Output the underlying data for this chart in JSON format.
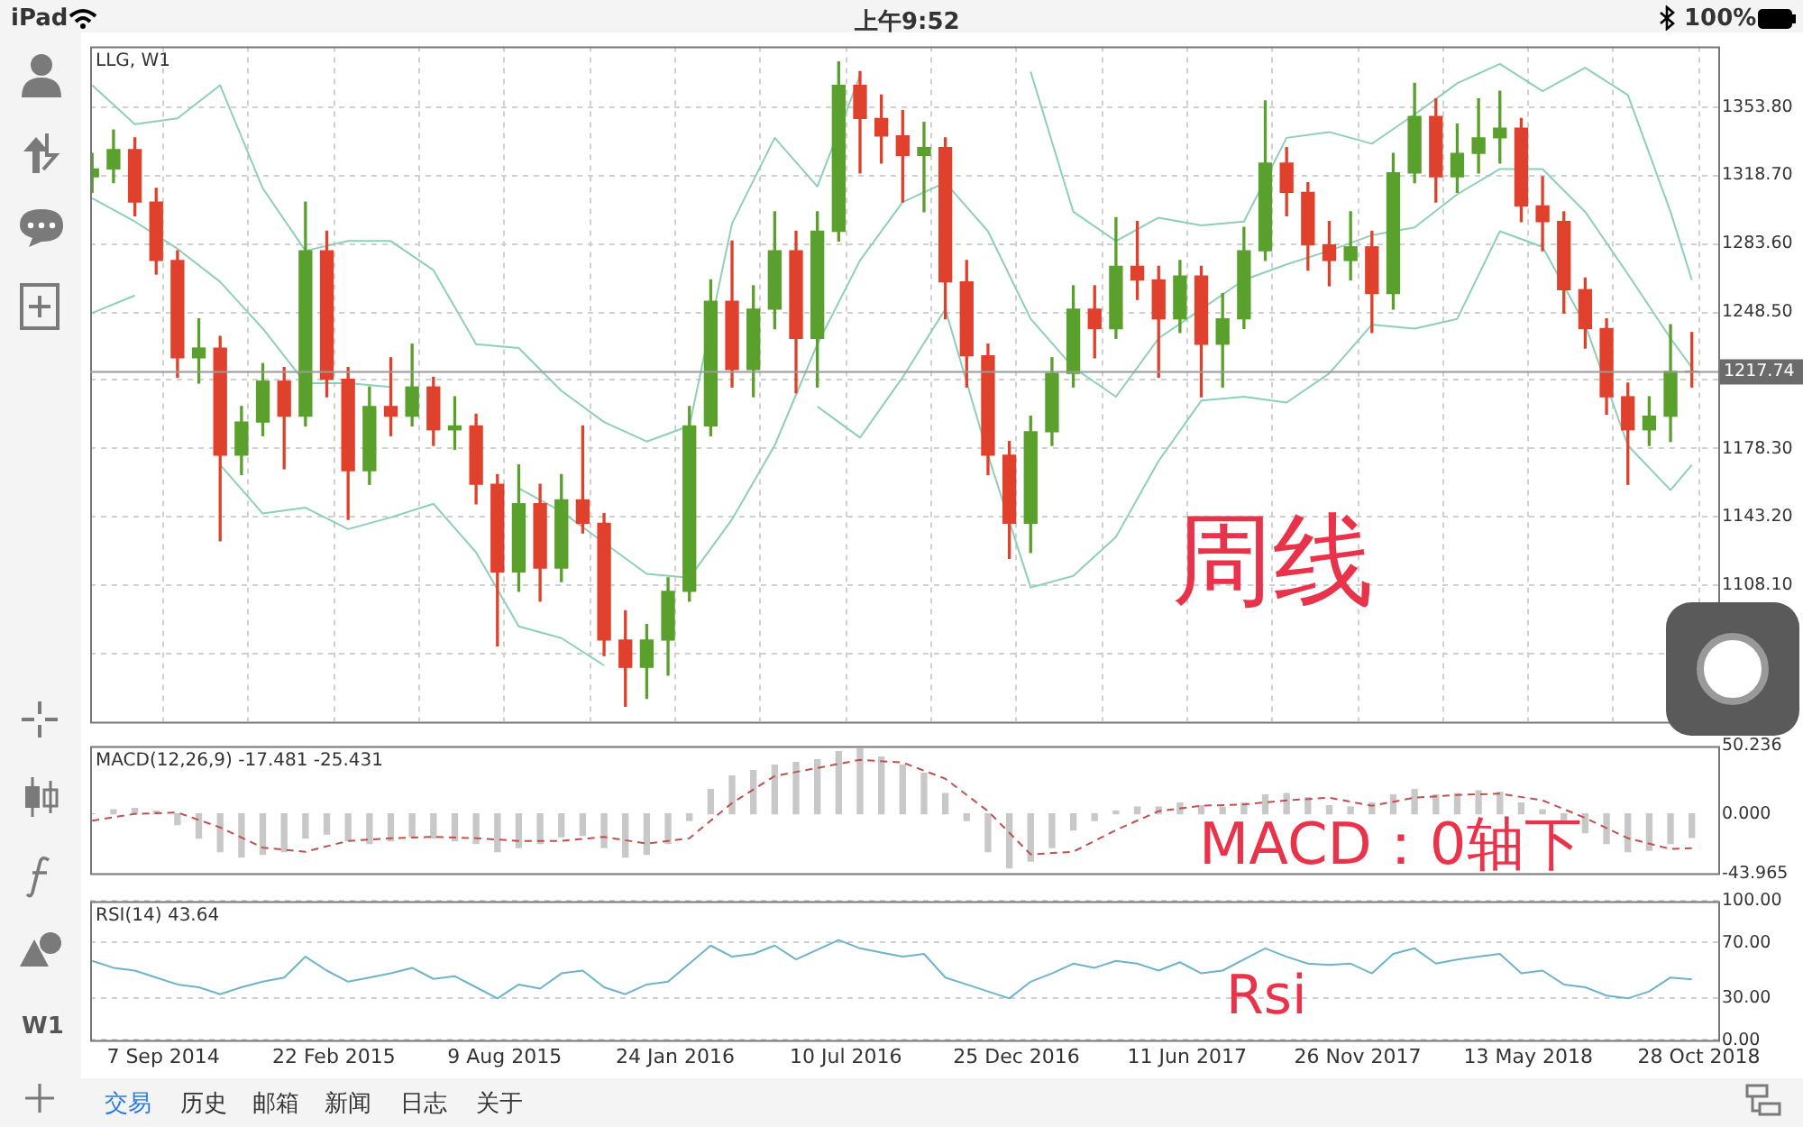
{
  "chart_data": [
    {
      "type": "candlestick",
      "title": "LLG, W1",
      "x": [
        "2014-06-29",
        "2014-07-20",
        "2014-08-10",
        "2014-08-31",
        "2014-09-21",
        "2014-10-12",
        "2014-11-02",
        "2014-11-23",
        "2014-12-14",
        "2015-01-04",
        "2015-01-25",
        "2015-02-15",
        "2015-03-08",
        "2015-03-29",
        "2015-04-19",
        "2015-05-10",
        "2015-05-31",
        "2015-06-21",
        "2015-07-12",
        "2015-08-02",
        "2015-08-23",
        "2015-09-13",
        "2015-10-04",
        "2015-10-25",
        "2015-11-15",
        "2015-12-06",
        "2015-12-27",
        "2016-01-17",
        "2016-02-07",
        "2016-02-28",
        "2016-03-20",
        "2016-04-10",
        "2016-05-01",
        "2016-05-22",
        "2016-06-12",
        "2016-07-03",
        "2016-07-24",
        "2016-08-14",
        "2016-09-04",
        "2016-09-25",
        "2016-10-16",
        "2016-11-06",
        "2016-11-27",
        "2016-12-18",
        "2017-01-08",
        "2017-01-29",
        "2017-02-19",
        "2017-03-12",
        "2017-04-02",
        "2017-04-23",
        "2017-05-14",
        "2017-06-04",
        "2017-06-25",
        "2017-07-16",
        "2017-08-06",
        "2017-08-27",
        "2017-09-17",
        "2017-10-08",
        "2017-10-29",
        "2017-11-19",
        "2017-12-10",
        "2017-12-31",
        "2018-01-21",
        "2018-02-11",
        "2018-03-04",
        "2018-03-25",
        "2018-04-15",
        "2018-05-06",
        "2018-05-27",
        "2018-06-17",
        "2018-07-08",
        "2018-07-29",
        "2018-08-19",
        "2018-09-09",
        "2018-09-30",
        "2018-10-21"
      ],
      "ohlc": [
        [
          1318,
          1330,
          1310,
          1322
        ],
        [
          1322,
          1342,
          1315,
          1332
        ],
        [
          1332,
          1338,
          1298,
          1305
        ],
        [
          1305,
          1312,
          1268,
          1275
        ],
        [
          1275,
          1280,
          1215,
          1225
        ],
        [
          1225,
          1245,
          1212,
          1230
        ],
        [
          1230,
          1236,
          1131,
          1175
        ],
        [
          1175,
          1200,
          1165,
          1192
        ],
        [
          1192,
          1222,
          1185,
          1213
        ],
        [
          1213,
          1220,
          1168,
          1195
        ],
        [
          1195,
          1305,
          1190,
          1280
        ],
        [
          1280,
          1290,
          1205,
          1214
        ],
        [
          1214,
          1220,
          1142,
          1167
        ],
        [
          1167,
          1210,
          1160,
          1200
        ],
        [
          1200,
          1225,
          1185,
          1195
        ],
        [
          1195,
          1232,
          1190,
          1210
        ],
        [
          1210,
          1215,
          1180,
          1188
        ],
        [
          1188,
          1205,
          1178,
          1190
        ],
        [
          1190,
          1196,
          1150,
          1160
        ],
        [
          1160,
          1165,
          1077,
          1115
        ],
        [
          1115,
          1170,
          1105,
          1150
        ],
        [
          1150,
          1160,
          1100,
          1117
        ],
        [
          1117,
          1165,
          1110,
          1152
        ],
        [
          1152,
          1190,
          1135,
          1140
        ],
        [
          1140,
          1145,
          1072,
          1080
        ],
        [
          1080,
          1095,
          1046,
          1066
        ],
        [
          1066,
          1088,
          1050,
          1080
        ],
        [
          1080,
          1112,
          1062,
          1105
        ],
        [
          1105,
          1200,
          1100,
          1190
        ],
        [
          1190,
          1265,
          1185,
          1254
        ],
        [
          1254,
          1285,
          1210,
          1219
        ],
        [
          1219,
          1262,
          1205,
          1250
        ],
        [
          1250,
          1300,
          1240,
          1280
        ],
        [
          1280,
          1290,
          1207,
          1235
        ],
        [
          1235,
          1300,
          1210,
          1290
        ],
        [
          1290,
          1377,
          1285,
          1365
        ],
        [
          1365,
          1372,
          1320,
          1348
        ],
        [
          1348,
          1360,
          1325,
          1339
        ],
        [
          1339,
          1352,
          1305,
          1329
        ],
        [
          1329,
          1346,
          1300,
          1333
        ],
        [
          1333,
          1338,
          1245,
          1264
        ],
        [
          1264,
          1275,
          1210,
          1226
        ],
        [
          1226,
          1232,
          1165,
          1175
        ],
        [
          1175,
          1182,
          1122,
          1140
        ],
        [
          1140,
          1195,
          1125,
          1187
        ],
        [
          1187,
          1225,
          1180,
          1217
        ],
        [
          1217,
          1262,
          1210,
          1250
        ],
        [
          1250,
          1262,
          1225,
          1240
        ],
        [
          1240,
          1297,
          1235,
          1272
        ],
        [
          1272,
          1295,
          1255,
          1265
        ],
        [
          1265,
          1272,
          1215,
          1245
        ],
        [
          1245,
          1275,
          1238,
          1267
        ],
        [
          1267,
          1272,
          1205,
          1232
        ],
        [
          1232,
          1258,
          1210,
          1245
        ],
        [
          1245,
          1292,
          1240,
          1280
        ],
        [
          1280,
          1357,
          1275,
          1325
        ],
        [
          1325,
          1333,
          1298,
          1310
        ],
        [
          1310,
          1315,
          1270,
          1283
        ],
        [
          1283,
          1295,
          1262,
          1275
        ],
        [
          1275,
          1300,
          1265,
          1282
        ],
        [
          1282,
          1290,
          1238,
          1258
        ],
        [
          1258,
          1330,
          1250,
          1320
        ],
        [
          1320,
          1366,
          1315,
          1349
        ],
        [
          1349,
          1358,
          1305,
          1318
        ],
        [
          1318,
          1345,
          1310,
          1330
        ],
        [
          1330,
          1358,
          1320,
          1338
        ],
        [
          1338,
          1362,
          1325,
          1343
        ],
        [
          1343,
          1348,
          1295,
          1303
        ],
        [
          1303,
          1318,
          1280,
          1295
        ],
        [
          1295,
          1300,
          1248,
          1260
        ],
        [
          1260,
          1266,
          1230,
          1240
        ],
        [
          1240,
          1245,
          1196,
          1205
        ],
        [
          1205,
          1212,
          1160,
          1188
        ],
        [
          1188,
          1205,
          1180,
          1195
        ],
        [
          1195,
          1242,
          1182,
          1218
        ],
        [
          1218,
          1238,
          1210,
          1217.74
        ]
      ],
      "colors": [
        "#5aa02c",
        "#5aa02c",
        "#e0412c",
        "#e0412c",
        "#e0412c",
        "#5aa02c",
        "#e0412c",
        "#5aa02c",
        "#5aa02c",
        "#e0412c",
        "#5aa02c",
        "#e0412c",
        "#e0412c",
        "#5aa02c",
        "#e0412c",
        "#5aa02c",
        "#e0412c",
        "#5aa02c",
        "#e0412c",
        "#e0412c",
        "#5aa02c",
        "#e0412c",
        "#5aa02c",
        "#e0412c",
        "#e0412c",
        "#e0412c",
        "#5aa02c",
        "#5aa02c",
        "#5aa02c",
        "#5aa02c",
        "#e0412c",
        "#5aa02c",
        "#5aa02c",
        "#e0412c",
        "#5aa02c",
        "#5aa02c",
        "#e0412c",
        "#e0412c",
        "#e0412c",
        "#5aa02c",
        "#e0412c",
        "#e0412c",
        "#e0412c",
        "#e0412c",
        "#5aa02c",
        "#5aa02c",
        "#5aa02c",
        "#e0412c",
        "#5aa02c",
        "#e0412c",
        "#e0412c",
        "#5aa02c",
        "#e0412c",
        "#5aa02c",
        "#5aa02c",
        "#5aa02c",
        "#e0412c",
        "#e0412c",
        "#e0412c",
        "#5aa02c",
        "#e0412c",
        "#5aa02c",
        "#5aa02c",
        "#e0412c",
        "#5aa02c",
        "#5aa02c",
        "#5aa02c",
        "#e0412c",
        "#e0412c",
        "#e0412c",
        "#e0412c",
        "#e0412c",
        "#e0412c",
        "#5aa02c",
        "#5aa02c",
        "#e0412c"
      ],
      "series": [
        {
          "type": "line",
          "color": "#8ecfb8",
          "x": [
            "2014-06-29",
            "2014-08-10",
            "2014-09-21",
            "2014-11-02",
            "2014-12-14",
            "2015-01-25",
            "2015-03-08",
            "2015-04-19",
            "2015-05-31",
            "2015-07-12",
            "2015-08-23",
            "2015-10-04",
            "2015-11-15",
            "2015-12-27",
            "2016-02-07",
            "2016-03-20",
            "2016-05-01",
            "2016-06-12",
            "2016-07-24",
            "2016-09-04",
            "2016-10-16",
            "2016-11-27",
            "2017-01-08",
            "2017-02-19",
            "2017-04-02",
            "2017-05-14",
            "2017-06-25",
            "2017-08-06",
            "2017-09-17",
            "2017-10-29",
            "2017-12-10",
            "2018-01-21",
            "2018-03-04",
            "2018-04-15",
            "2018-05-27",
            "2018-07-08",
            "2018-08-19",
            "2018-09-30",
            "2018-10-21"
          ],
          "values": [
            1365,
            1345,
            1348,
            1365,
            1312,
            1280,
            1285,
            1285,
            1270,
            1232,
            1230,
            1208,
            1192,
            1182,
            1190,
            1294,
            1338,
            1313,
            1370,
            null,
            null,
            null,
            1372,
            1300,
            1285,
            1297,
            1293,
            1295,
            1338,
            1341,
            1335,
            1350,
            1366,
            1376,
            1362,
            1374,
            1360,
            1300,
            1265
          ]
        },
        {
          "type": "line",
          "color": "#8ecfb8",
          "x": [
            "2014-06-29",
            "2014-08-10",
            "2014-09-21",
            "2014-11-02",
            "2014-12-14",
            "2015-01-25",
            "2015-03-08",
            "2015-04-19",
            "2015-05-31",
            "2015-07-12",
            "2015-08-23",
            "2015-10-04",
            "2015-11-15",
            "2015-12-27",
            "2016-02-07",
            "2016-03-20",
            "2016-05-01",
            "2016-06-12",
            "2016-07-24",
            "2016-09-04",
            "2016-10-16",
            "2016-11-27",
            "2017-01-08",
            "2017-02-19",
            "2017-04-02",
            "2017-05-14",
            "2017-06-25",
            "2017-08-06",
            "2017-09-17",
            "2017-10-29",
            "2017-12-10",
            "2018-01-21",
            "2018-03-04",
            "2018-04-15",
            "2018-05-27",
            "2018-07-08",
            "2018-08-19",
            "2018-09-30",
            "2018-10-21"
          ],
          "values": [
            1307,
            1295,
            1281,
            1264,
            1240,
            1212,
            1212,
            1210,
            null,
            null,
            1158,
            1146,
            1130,
            1114,
            1112,
            1142,
            1180,
            1232,
            1275,
            1305,
            1315,
            1290,
            1245,
            1220,
            1205,
            1235,
            1250,
            1265,
            1273,
            1280,
            1288,
            1292,
            1309,
            1322,
            1322,
            1300,
            1268,
            1235,
            1220
          ]
        },
        {
          "type": "line",
          "color": "#8ecfb8",
          "x": [
            "2014-06-29",
            "2014-08-10",
            "2014-09-21",
            "2014-11-02",
            "2014-12-14",
            "2015-01-25",
            "2015-03-08",
            "2015-04-19",
            "2015-05-31",
            "2015-07-12",
            "2015-08-23",
            "2015-10-04",
            "2015-11-15",
            "2015-12-27",
            "2016-02-07",
            "2016-03-20",
            "2016-05-01",
            "2016-06-12",
            "2016-07-24",
            "2016-09-04",
            "2016-10-16",
            "2016-11-27",
            "2017-01-08",
            "2017-02-19",
            "2017-04-02",
            "2017-05-14",
            "2017-06-25",
            "2017-08-06",
            "2017-09-17",
            "2017-10-29",
            "2017-12-10",
            "2018-01-21",
            "2018-03-04",
            "2018-04-15",
            "2018-05-27",
            "2018-07-08",
            "2018-08-19",
            "2018-09-30",
            "2018-10-21"
          ],
          "values": [
            1248,
            1257,
            null,
            1170,
            1145,
            1148,
            1137,
            1143,
            1150,
            1125,
            1087,
            1081,
            1067,
            null,
            null,
            null,
            null,
            1200,
            1184,
            1215,
            1250,
            1175,
            1107,
            1113,
            1133,
            1172,
            1203,
            1205,
            1202,
            1217,
            1242,
            1240,
            1245,
            1290,
            1282,
            1242,
            1180,
            1157,
            1170
          ]
        }
      ],
      "xlim": [
        "2014-06-27",
        "2018-11-16"
      ],
      "xticks": [
        {
          "value": "2014-09-07",
          "label": null
        },
        {
          "value": "2014-11-30",
          "label": null
        },
        {
          "value": "2015-02-22",
          "label": null
        },
        {
          "value": "2015-05-17",
          "label": null
        },
        {
          "value": "2015-08-09",
          "label": null
        },
        {
          "value": "2015-11-01",
          "label": null
        },
        {
          "value": "2016-01-24",
          "label": null
        },
        {
          "value": "2016-04-17",
          "label": null
        },
        {
          "value": "2016-07-10",
          "label": null
        },
        {
          "value": "2016-10-02",
          "label": null
        },
        {
          "value": "2016-12-25",
          "label": null
        },
        {
          "value": "2017-03-19",
          "label": null
        },
        {
          "value": "2017-06-11",
          "label": null
        },
        {
          "value": "2017-09-03",
          "label": null
        },
        {
          "value": "2017-11-26",
          "label": null
        },
        {
          "value": "2018-02-18",
          "label": null
        },
        {
          "value": "2018-05-13",
          "label": null
        },
        {
          "value": "2018-08-05",
          "label": null
        },
        {
          "value": "2018-10-28",
          "label": null
        }
      ],
      "ylim": [
        1038,
        1385
      ],
      "yticks": [
        {
          "value": 1073,
          "label": null
        },
        {
          "value": 1108.1,
          "label": "1108.10"
        },
        {
          "value": 1143.2,
          "label": "1143.20"
        },
        {
          "value": 1178.3,
          "label": "1178.30"
        },
        {
          "value": 1213.4,
          "label": null
        },
        {
          "value": 1248.5,
          "label": "1248.50"
        },
        {
          "value": 1283.6,
          "label": "1283.60"
        },
        {
          "value": 1318.7,
          "label": "1318.70"
        },
        {
          "value": 1353.8,
          "label": "1353.80"
        }
      ],
      "grid": true,
      "tick_labels": "y",
      "ref_lines": [
        {
          "axis": "y",
          "value": 1217.74,
          "label": "1217.74"
        }
      ],
      "annotations": [
        "周线"
      ]
    },
    {
      "type": "bar",
      "title": "MACD(12,26,9) -17.481 -25.431",
      "x": [
        "2014-06-29",
        "2014-07-20",
        "2014-08-10",
        "2014-08-31",
        "2014-09-21",
        "2014-10-12",
        "2014-11-02",
        "2014-11-23",
        "2014-12-14",
        "2015-01-04",
        "2015-01-25",
        "2015-02-15",
        "2015-03-08",
        "2015-03-29",
        "2015-04-19",
        "2015-05-10",
        "2015-05-31",
        "2015-06-21",
        "2015-07-12",
        "2015-08-02",
        "2015-08-23",
        "2015-09-13",
        "2015-10-04",
        "2015-10-25",
        "2015-11-15",
        "2015-12-06",
        "2015-12-27",
        "2016-01-17",
        "2016-02-07",
        "2016-02-28",
        "2016-03-20",
        "2016-04-10",
        "2016-05-01",
        "2016-05-22",
        "2016-06-12",
        "2016-07-03",
        "2016-07-24",
        "2016-08-14",
        "2016-09-04",
        "2016-09-25",
        "2016-10-16",
        "2016-11-06",
        "2016-11-27",
        "2016-12-18",
        "2017-01-08",
        "2017-01-29",
        "2017-02-19",
        "2017-03-12",
        "2017-04-02",
        "2017-04-23",
        "2017-05-14",
        "2017-06-04",
        "2017-06-25",
        "2017-07-16",
        "2017-08-06",
        "2017-08-27",
        "2017-09-17",
        "2017-10-08",
        "2017-10-29",
        "2017-11-19",
        "2017-12-10",
        "2017-12-31",
        "2018-01-21",
        "2018-02-11",
        "2018-03-04",
        "2018-03-25",
        "2018-04-15",
        "2018-05-06",
        "2018-05-27",
        "2018-06-17",
        "2018-07-08",
        "2018-07-29",
        "2018-08-19",
        "2018-09-09",
        "2018-09-30",
        "2018-10-21"
      ],
      "series": [
        {
          "type": "bar",
          "color": "#c8c8c8",
          "values": [
            0,
            3,
            4,
            2,
            -8,
            -18,
            -28,
            -32,
            -30,
            -28,
            -18,
            -15,
            -20,
            -22,
            -20,
            -17,
            -18,
            -20,
            -22,
            -28,
            -25,
            -22,
            -17,
            -16,
            -25,
            -32,
            -30,
            -22,
            -5,
            18,
            28,
            32,
            36,
            38,
            40,
            46,
            48,
            42,
            36,
            30,
            15,
            -5,
            -28,
            -40,
            -35,
            -25,
            -12,
            -5,
            2,
            5,
            5,
            8,
            6,
            5,
            8,
            14,
            15,
            12,
            6,
            5,
            8,
            14,
            18,
            14,
            15,
            17,
            16,
            8,
            3,
            -5,
            -14,
            -22,
            -28,
            -27,
            -22,
            -17.481
          ]
        },
        {
          "type": "line",
          "color": "#c0504d",
          "line_style": "dashed",
          "x": [
            "2014-06-29",
            "2014-08-10",
            "2014-09-21",
            "2014-11-02",
            "2014-12-14",
            "2015-01-25",
            "2015-03-08",
            "2015-04-19",
            "2015-05-31",
            "2015-07-12",
            "2015-08-23",
            "2015-10-04",
            "2015-11-15",
            "2015-12-27",
            "2016-02-07",
            "2016-03-20",
            "2016-05-01",
            "2016-06-12",
            "2016-07-24",
            "2016-09-04",
            "2016-10-16",
            "2016-11-27",
            "2017-01-08",
            "2017-02-19",
            "2017-04-02",
            "2017-05-14",
            "2017-06-25",
            "2017-08-06",
            "2017-09-17",
            "2017-10-29",
            "2017-12-10",
            "2018-01-21",
            "2018-03-04",
            "2018-04-15",
            "2018-05-27",
            "2018-07-08",
            "2018-08-19",
            "2018-09-30",
            "2018-10-21"
          ],
          "values": [
            -5,
            0,
            1,
            -10,
            -25,
            -28,
            -20,
            -18,
            -17,
            -18,
            -20,
            -20,
            -17,
            -22,
            -18,
            8,
            28,
            34,
            40,
            38,
            26,
            2,
            -30,
            -28,
            -12,
            2,
            6,
            7,
            10,
            12,
            6,
            12,
            14,
            15,
            10,
            -3,
            -18,
            -26,
            -25.431
          ]
        }
      ],
      "xlim": [
        "2014-06-27",
        "2018-11-16"
      ],
      "ylim": [
        -43.965,
        50.236
      ],
      "yticks": [
        {
          "value": -43.965,
          "label": "-43.965"
        },
        {
          "value": 0,
          "label": "0.000"
        },
        {
          "value": 50.236,
          "label": "50.236"
        }
      ],
      "tick_labels": "y",
      "annotations": [
        "MACD：0轴下"
      ]
    },
    {
      "type": "line",
      "title": "RSI(14) 43.64",
      "color": "#6fb3c8",
      "x": [
        "2014-06-29",
        "2014-07-20",
        "2014-08-10",
        "2014-08-31",
        "2014-09-21",
        "2014-10-12",
        "2014-11-02",
        "2014-11-23",
        "2014-12-14",
        "2015-01-04",
        "2015-01-25",
        "2015-02-15",
        "2015-03-08",
        "2015-03-29",
        "2015-04-19",
        "2015-05-10",
        "2015-05-31",
        "2015-06-21",
        "2015-07-12",
        "2015-08-02",
        "2015-08-23",
        "2015-09-13",
        "2015-10-04",
        "2015-10-25",
        "2015-11-15",
        "2015-12-06",
        "2015-12-27",
        "2016-01-17",
        "2016-02-07",
        "2016-02-28",
        "2016-03-20",
        "2016-04-10",
        "2016-05-01",
        "2016-05-22",
        "2016-06-12",
        "2016-07-03",
        "2016-07-24",
        "2016-08-14",
        "2016-09-04",
        "2016-09-25",
        "2016-10-16",
        "2016-11-06",
        "2016-11-27",
        "2016-12-18",
        "2017-01-08",
        "2017-01-29",
        "2017-02-19",
        "2017-03-12",
        "2017-04-02",
        "2017-04-23",
        "2017-05-14",
        "2017-06-04",
        "2017-06-25",
        "2017-07-16",
        "2017-08-06",
        "2017-08-27",
        "2017-09-17",
        "2017-10-08",
        "2017-10-29",
        "2017-11-19",
        "2017-12-10",
        "2017-12-31",
        "2018-01-21",
        "2018-02-11",
        "2018-03-04",
        "2018-03-25",
        "2018-04-15",
        "2018-05-06",
        "2018-05-27",
        "2018-06-17",
        "2018-07-08",
        "2018-07-29",
        "2018-08-19",
        "2018-09-09",
        "2018-09-30",
        "2018-10-21"
      ],
      "values": [
        57,
        52,
        50,
        45,
        40,
        38,
        33,
        38,
        42,
        45,
        60,
        50,
        42,
        45,
        48,
        52,
        44,
        46,
        38,
        30,
        40,
        37,
        48,
        50,
        38,
        33,
        40,
        42,
        55,
        68,
        60,
        62,
        68,
        58,
        65,
        72,
        66,
        63,
        60,
        62,
        45,
        40,
        35,
        30,
        42,
        48,
        55,
        52,
        57,
        55,
        50,
        56,
        48,
        50,
        58,
        66,
        60,
        55,
        54,
        55,
        48,
        62,
        66,
        55,
        58,
        60,
        62,
        48,
        50,
        40,
        38,
        32,
        30,
        35,
        45,
        43.64
      ],
      "xlim": [
        "2014-06-27",
        "2018-11-16"
      ],
      "xticks": [
        {
          "value": "2014-09-07",
          "label": "7 Sep 2014"
        },
        {
          "value": "2015-02-22",
          "label": "22 Feb 2015"
        },
        {
          "value": "2015-08-09",
          "label": "9 Aug 2015"
        },
        {
          "value": "2016-01-24",
          "label": "24 Jan 2016"
        },
        {
          "value": "2016-07-10",
          "label": "10 Jul 2016"
        },
        {
          "value": "2016-12-25",
          "label": "25 Dec 2016"
        },
        {
          "value": "2017-06-11",
          "label": "11 Jun 2017"
        },
        {
          "value": "2017-11-26",
          "label": "26 Nov 2017"
        },
        {
          "value": "2018-05-13",
          "label": "13 May 2018"
        },
        {
          "value": "2018-10-28",
          "label": "28 Oct 2018"
        }
      ],
      "ylim": [
        0,
        100
      ],
      "yticks": [
        {
          "value": 0,
          "label": "0.00"
        },
        {
          "value": 30,
          "label": "30.00"
        },
        {
          "value": 70,
          "label": "70.00"
        },
        {
          "value": 100,
          "label": "100.00"
        }
      ],
      "grid": "y",
      "annotations": [
        "Rsi"
      ]
    },
    {
      "type": "other",
      "annotations": [
        "iPad",
        "上午9:52",
        "100%",
        "W1",
        "交易",
        "历史",
        "邮箱",
        "新闻",
        "日志",
        "关于"
      ]
    }
  ]
}
